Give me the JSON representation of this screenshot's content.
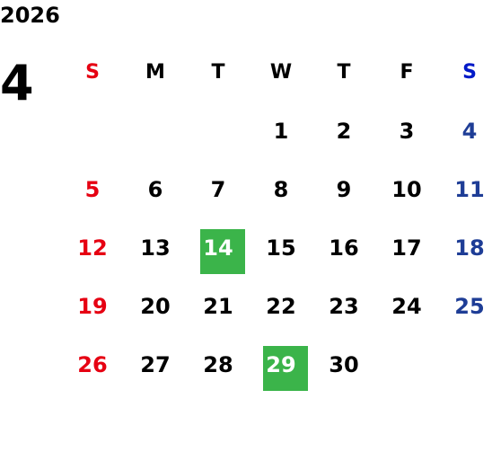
{
  "calendar": {
    "year": "2026",
    "month": "4",
    "weekdays": [
      "S",
      "M",
      "T",
      "W",
      "T",
      "F",
      "S"
    ],
    "weeks": [
      [
        "",
        "",
        "",
        "1",
        "2",
        "3",
        "4"
      ],
      [
        "5",
        "6",
        "7",
        "8",
        "9",
        "10",
        "11"
      ],
      [
        "12",
        "13",
        "14",
        "15",
        "16",
        "17",
        "18"
      ],
      [
        "19",
        "20",
        "21",
        "22",
        "23",
        "24",
        "25"
      ],
      [
        "26",
        "27",
        "28",
        "29",
        "30",
        "",
        ""
      ]
    ],
    "highlighted_days": [
      "14",
      "29"
    ]
  },
  "colors": {
    "sunday": "#e60012",
    "saturday_header": "#0019c8",
    "saturday": "#1e3d96",
    "highlight": "#3bb44a",
    "text": "#000000"
  }
}
